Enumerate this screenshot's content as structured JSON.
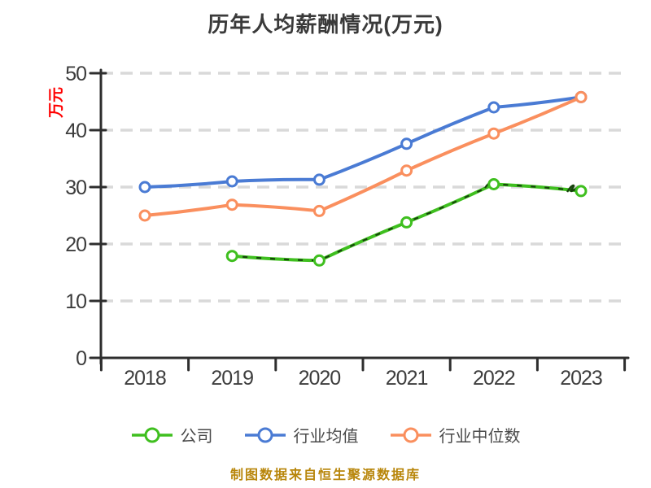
{
  "title": "历年人均薪酬情况(万元)",
  "y_axis_label": "万元",
  "caption": "制图数据来自恒生聚源数据库",
  "colors": {
    "title_text": "#3a3a3a",
    "y_axis_label_text": "#ff0000",
    "axis": "#2e2e2e",
    "gridline": "#d9d9d9",
    "tick_label_text": "#3d3d3d",
    "legend_text": "#4a4a4a",
    "caption_text": "#b8860b",
    "company_series": "#3fbf1f",
    "company_sketch_overlay": "#16420c",
    "industry_mean_series": "#4a7bd4",
    "industry_median_series": "#fa8f5e"
  },
  "chart_data": {
    "type": "line",
    "title": "历年人均薪酬情况(万元)",
    "xlabel": "",
    "ylabel": "万元",
    "categories": [
      "2018",
      "2019",
      "2020",
      "2021",
      "2022",
      "2023"
    ],
    "series": [
      {
        "name": "公司",
        "color": "#3fbf1f",
        "overlay": "#16420c",
        "values": [
          null,
          17.9,
          17.1,
          23.8,
          30.5,
          29.3
        ]
      },
      {
        "name": "行业均值",
        "color": "#4a7bd4",
        "overlay": null,
        "values": [
          30.0,
          31.0,
          31.3,
          37.6,
          44.0,
          45.8
        ]
      },
      {
        "name": "行业中位数",
        "color": "#fa8f5e",
        "overlay": null,
        "values": [
          25.0,
          26.9,
          25.8,
          32.9,
          39.4,
          45.8
        ]
      }
    ],
    "ylim": [
      0,
      50
    ],
    "yticks": [
      0,
      10,
      20,
      30,
      40,
      50
    ],
    "grid": "horizontal dashed",
    "legend_position": "bottom",
    "marker": "circle white-filled with colored edge",
    "line_style_note": "hand-drawn sketch style; company line carries dark-green dash marks"
  }
}
